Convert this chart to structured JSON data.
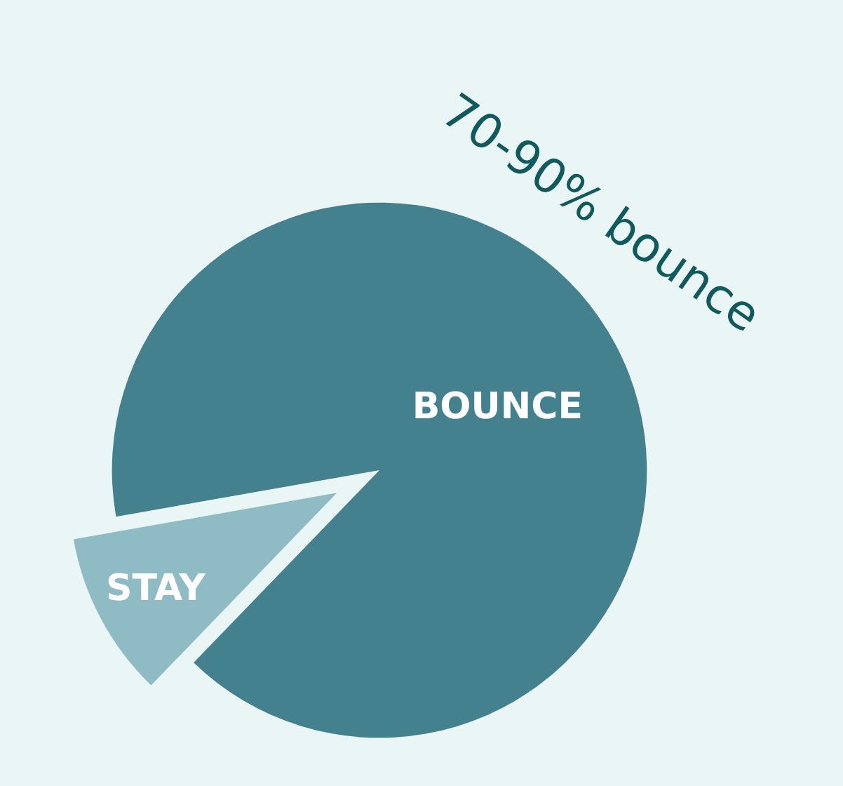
{
  "chart_data": {
    "type": "pie",
    "categories": [
      "BOUNCE",
      "STAY"
    ],
    "values": [
      90,
      10
    ],
    "colors": [
      "#43818f",
      "#8fbcc4"
    ],
    "annotations": [
      "70-90% bounce"
    ]
  }
}
